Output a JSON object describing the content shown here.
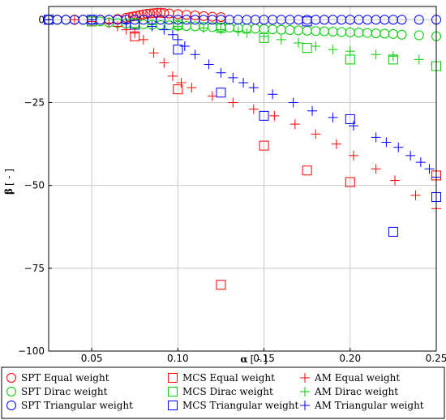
{
  "chart_data": {
    "type": "scatter",
    "xlabel": {
      "symbol": "α",
      "unit": "[ - ]"
    },
    "ylabel": {
      "symbol": "β",
      "unit": "[ - ]"
    },
    "xlim": [
      0.025,
      0.25
    ],
    "ylim": [
      -100,
      4
    ],
    "x_ticks": [
      0.05,
      0.1,
      0.15,
      0.2,
      0.25
    ],
    "x_tick_labels": [
      "0.05",
      "0.10",
      "0.15",
      "0.20",
      "0.25"
    ],
    "y_ticks": [
      0,
      -25,
      -50,
      -75,
      -100
    ],
    "y_tick_labels": [
      "0",
      "−25",
      "−50",
      "−75",
      "−100"
    ],
    "grid": true,
    "legend_position": "bottom",
    "series": [
      {
        "name": "SPT Equal weight",
        "marker": "circle",
        "color": "#ff0000",
        "x": [
          0.025,
          0.03,
          0.035,
          0.04,
          0.045,
          0.05,
          0.055,
          0.06,
          0.065,
          0.07,
          0.072,
          0.074,
          0.076,
          0.078,
          0.08,
          0.082,
          0.084,
          0.086,
          0.088,
          0.09,
          0.092,
          0.095,
          0.1,
          0.105,
          0.11,
          0.115,
          0.12,
          0.125
        ],
        "y": [
          0,
          0,
          0,
          0,
          0,
          0,
          0,
          0,
          0.2,
          0.6,
          0.8,
          1,
          1.2,
          1.4,
          1.6,
          1.8,
          1.9,
          2,
          2.1,
          2.1,
          2,
          1.9,
          1.7,
          1.5,
          1.3,
          1.1,
          0.9,
          0.8
        ]
      },
      {
        "name": "SPT Dirac weight",
        "marker": "circle",
        "color": "#00cc00",
        "x": [
          0.025,
          0.03,
          0.035,
          0.04,
          0.045,
          0.05,
          0.055,
          0.06,
          0.065,
          0.07,
          0.075,
          0.08,
          0.085,
          0.09,
          0.095,
          0.1,
          0.105,
          0.11,
          0.115,
          0.12,
          0.125,
          0.13,
          0.135,
          0.14,
          0.145,
          0.15,
          0.155,
          0.16,
          0.165,
          0.17,
          0.175,
          0.18,
          0.185,
          0.19,
          0.195,
          0.2,
          0.205,
          0.21,
          0.215,
          0.22,
          0.225,
          0.23,
          0.24,
          0.25
        ],
        "y": [
          0,
          0,
          0,
          0,
          0,
          0,
          -0.5,
          -0.8,
          -1,
          -1.2,
          -1.3,
          -1.4,
          -1.5,
          -1.6,
          -1.7,
          -1.8,
          -1.9,
          -2,
          -2.1,
          -2.2,
          -2.3,
          -2.4,
          -2.5,
          -2.6,
          -2.7,
          -2.8,
          -2.9,
          -3,
          -3.1,
          -3.2,
          -3.3,
          -3.4,
          -3.5,
          -3.6,
          -3.7,
          -3.8,
          -3.9,
          -4,
          -4.1,
          -4.2,
          -4.3,
          -4.5,
          -4.7,
          -5
        ]
      },
      {
        "name": "SPT Triangular weight",
        "marker": "circle",
        "color": "#0000ff",
        "x": [
          0.025,
          0.03,
          0.035,
          0.04,
          0.045,
          0.05,
          0.055,
          0.06,
          0.065,
          0.07,
          0.075,
          0.08,
          0.085,
          0.09,
          0.095,
          0.1,
          0.105,
          0.11,
          0.115,
          0.12,
          0.125,
          0.13,
          0.135,
          0.14,
          0.145,
          0.15,
          0.155,
          0.16,
          0.165,
          0.17,
          0.175,
          0.18,
          0.185,
          0.19,
          0.195,
          0.2,
          0.205,
          0.21,
          0.215,
          0.22,
          0.225,
          0.23,
          0.24,
          0.25
        ],
        "y": [
          0,
          0,
          0,
          0,
          0,
          0,
          0,
          0,
          0,
          0,
          0,
          0,
          0,
          0,
          0,
          0,
          0,
          0,
          0,
          0,
          0,
          0,
          0,
          0,
          0,
          0,
          0,
          0,
          0,
          0,
          0,
          0,
          0,
          0,
          0,
          0,
          0,
          0,
          0,
          0,
          0,
          0,
          0,
          0
        ]
      },
      {
        "name": "MCS Equal weight",
        "marker": "square",
        "color": "#ff0000",
        "x": [
          0.025,
          0.05,
          0.075,
          0.1,
          0.125,
          0.15,
          0.175,
          0.2,
          0.25
        ],
        "y": [
          0,
          -0.5,
          -5,
          -21,
          -80,
          -38,
          -45.5,
          -49,
          -47
        ]
      },
      {
        "name": "MCS Dirac weight",
        "marker": "square",
        "color": "#00cc00",
        "x": [
          0.025,
          0.05,
          0.075,
          0.1,
          0.125,
          0.15,
          0.175,
          0.2,
          0.225,
          0.25
        ],
        "y": [
          0,
          -0.5,
          -1,
          -1.5,
          -2.5,
          -5.5,
          -8.5,
          -12,
          -12,
          -14
        ]
      },
      {
        "name": "MCS Triangular weight",
        "marker": "square",
        "color": "#0000ff",
        "x": [
          0.025,
          0.05,
          0.075,
          0.1,
          0.125,
          0.15,
          0.175,
          0.2,
          0.225,
          0.25
        ],
        "y": [
          0,
          0,
          -1.5,
          -9,
          -22,
          -29,
          -0.5,
          -30,
          -64,
          -53.5
        ]
      },
      {
        "name": "AM Equal weight",
        "marker": "plus",
        "color": "#ff0000",
        "x": [
          0.025,
          0.04,
          0.05,
          0.06,
          0.065,
          0.07,
          0.075,
          0.08,
          0.086,
          0.092,
          0.097,
          0.102,
          0.108,
          0.12,
          0.132,
          0.144,
          0.156,
          0.168,
          0.18,
          0.192,
          0.202,
          0.215,
          0.226,
          0.238,
          0.25
        ],
        "y": [
          0,
          0,
          -0.5,
          -1,
          -2,
          -3,
          -4,
          -6,
          -10,
          -13,
          -17,
          -19,
          -20.5,
          -23,
          -25,
          -27,
          -29,
          -31.5,
          -34.5,
          -37.5,
          -41,
          -45,
          -48.5,
          -53,
          -57
        ]
      },
      {
        "name": "AM Dirac weight",
        "marker": "plus",
        "color": "#00cc00",
        "x": [
          0.025,
          0.05,
          0.07,
          0.085,
          0.1,
          0.115,
          0.125,
          0.135,
          0.14,
          0.15,
          0.16,
          0.17,
          0.18,
          0.19,
          0.2,
          0.215,
          0.225,
          0.24
        ],
        "y": [
          0,
          0,
          -1,
          -1.5,
          -2,
          -2.5,
          -3,
          -3.5,
          -4,
          -5,
          -6,
          -7,
          -8,
          -9,
          -9.5,
          -10.5,
          -11,
          -12
        ]
      },
      {
        "name": "AM Triangular weight",
        "marker": "plus",
        "color": "#0000ff",
        "x": [
          0.025,
          0.05,
          0.07,
          0.085,
          0.092,
          0.097,
          0.1,
          0.104,
          0.11,
          0.118,
          0.125,
          0.132,
          0.138,
          0.144,
          0.155,
          0.167,
          0.178,
          0.19,
          0.202,
          0.215,
          0.221,
          0.228,
          0.235,
          0.241,
          0.246,
          0.25
        ],
        "y": [
          0,
          0,
          -1,
          -2,
          -3,
          -4.5,
          -6,
          -8,
          -10.5,
          -13.5,
          -16,
          -17.5,
          -19,
          -20.5,
          -22.5,
          -25,
          -27.5,
          -29.5,
          -32,
          -35.5,
          -37,
          -38.5,
          -41,
          -43,
          -45,
          -47.5
        ]
      }
    ]
  }
}
